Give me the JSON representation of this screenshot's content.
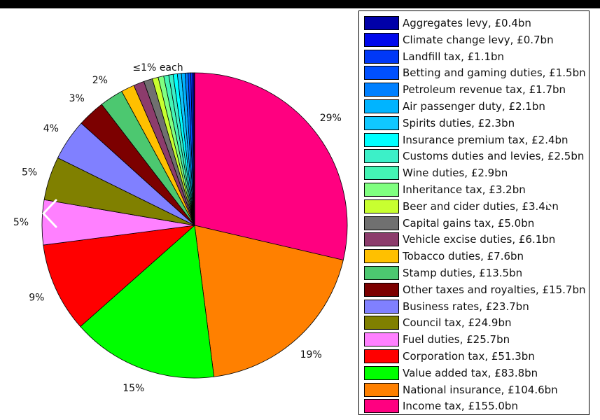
{
  "chart_data": {
    "type": "pie",
    "title": "",
    "slices": [
      {
        "label": "Aggregates levy, £0.4bn",
        "value": 0.4,
        "color": "#0000a8"
      },
      {
        "label": "Climate change levy, £0.7bn",
        "value": 0.7,
        "color": "#0008ec"
      },
      {
        "label": "Landfill tax, £1.1bn",
        "value": 1.1,
        "color": "#0038f6"
      },
      {
        "label": "Betting and gaming duties, £1.5bn",
        "value": 1.5,
        "color": "#0050ff"
      },
      {
        "label": "Petroleum revenue tax, £1.7bn",
        "value": 1.7,
        "color": "#0080ff"
      },
      {
        "label": "Air passenger duty, £2.1bn",
        "value": 2.1,
        "color": "#00b4ff"
      },
      {
        "label": "Spirits duties, £2.3bn",
        "value": 2.3,
        "color": "#10c8ff"
      },
      {
        "label": "Insurance premium tax, £2.4bn",
        "value": 2.4,
        "color": "#00ffff"
      },
      {
        "label": "Customs duties and levies, £2.5bn",
        "value": 2.5,
        "color": "#3cf0c8"
      },
      {
        "label": "Wine duties, £2.9bn",
        "value": 2.9,
        "color": "#44f4b4"
      },
      {
        "label": "Inheritance tax, £3.2bn",
        "value": 3.2,
        "color": "#80ff80"
      },
      {
        "label": "Beer and cider duties, £3.4bn",
        "value": 3.4,
        "color": "#c8ff30"
      },
      {
        "label": "Capital gains tax, £5.0bn",
        "value": 5.0,
        "color": "#707070"
      },
      {
        "label": "Vehicle excise duties, £6.1bn",
        "value": 6.1,
        "color": "#8c3c6c"
      },
      {
        "label": "Tobacco duties, £7.6bn",
        "value": 7.6,
        "color": "#ffc000"
      },
      {
        "label": "Stamp duties, £13.5bn",
        "value": 13.5,
        "color": "#4cc870"
      },
      {
        "label": "Other taxes and royalties, £15.7bn",
        "value": 15.7,
        "color": "#7c0000"
      },
      {
        "label": "Business rates, £23.7bn",
        "value": 23.7,
        "color": "#8080ff"
      },
      {
        "label": "Council tax, £24.9bn",
        "value": 24.9,
        "color": "#808000"
      },
      {
        "label": "Fuel duties, £25.7bn",
        "value": 25.7,
        "color": "#ff80ff"
      },
      {
        "label": "Corporation tax, £51.3bn",
        "value": 51.3,
        "color": "#ff0000"
      },
      {
        "label": "Value added tax, £83.8bn",
        "value": 83.8,
        "color": "#00ff00"
      },
      {
        "label": "National insurance, £104.6bn",
        "value": 104.6,
        "color": "#ff8000"
      },
      {
        "label": "Income tax, £155.0bn",
        "value": 155.0,
        "color": "#ff0080"
      }
    ],
    "slice_labels": [
      {
        "slice": "Income tax, £155.0bn",
        "text": "29%"
      },
      {
        "slice": "National insurance, £104.6bn",
        "text": "19%"
      },
      {
        "slice": "Value added tax, £83.8bn",
        "text": "15%"
      },
      {
        "slice": "Corporation tax, £51.3bn",
        "text": "9%"
      },
      {
        "slice": "Fuel duties, £25.7bn",
        "text": "5%"
      },
      {
        "slice": "Council tax, £24.9bn",
        "text": "5%"
      },
      {
        "slice": "Business rates, £23.7bn",
        "text": "4%"
      },
      {
        "slice": "Other taxes and royalties, £15.7bn",
        "text": "3%"
      },
      {
        "slice": "Stamp duties, £13.5bn",
        "text": "2%"
      },
      {
        "slice": "small",
        "text": "≤1% each"
      }
    ],
    "legend_position": "right"
  },
  "nav": {
    "prev_icon": "chevron-left-icon",
    "next_icon": "chevron-right-icon"
  }
}
